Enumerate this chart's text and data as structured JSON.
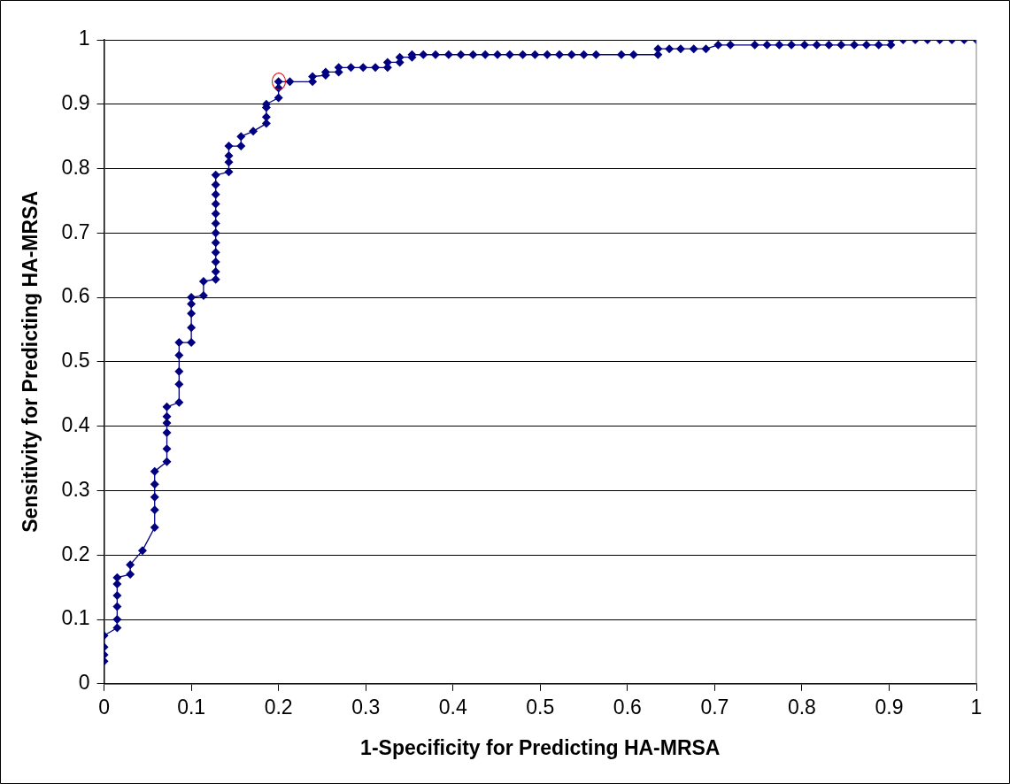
{
  "chart_data": {
    "type": "line",
    "xlabel": "1-Specificity for Predicting HA-MRSA",
    "ylabel": "Sensitivity for Predicting HA-MRSA",
    "xlim": [
      0,
      1
    ],
    "ylim": [
      0,
      1
    ],
    "xticks": [
      0,
      0.1,
      0.2,
      0.3,
      0.4,
      0.5,
      0.6,
      0.7,
      0.8,
      0.9,
      1
    ],
    "yticks": [
      0,
      0.1,
      0.2,
      0.3,
      0.4,
      0.5,
      0.6,
      0.7,
      0.8,
      0.9,
      1
    ],
    "grid": "y",
    "marker": "diamond",
    "line_style": "solid",
    "series": [
      {
        "color": "#000080",
        "x": [
          0,
          0,
          0,
          0,
          0.015,
          0.015,
          0.015,
          0.015,
          0.015,
          0.015,
          0.03,
          0.03,
          0.044,
          0.058,
          0.058,
          0.058,
          0.058,
          0.058,
          0.072,
          0.072,
          0.072,
          0.072,
          0.072,
          0.072,
          0.086,
          0.086,
          0.086,
          0.086,
          0.086,
          0.1,
          0.1,
          0.1,
          0.1,
          0.1,
          0.114,
          0.114,
          0.128,
          0.128,
          0.128,
          0.128,
          0.128,
          0.128,
          0.128,
          0.128,
          0.128,
          0.128,
          0.128,
          0.128,
          0.143,
          0.143,
          0.143,
          0.143,
          0.157,
          0.157,
          0.171,
          0.186,
          0.186,
          0.186,
          0.186,
          0.2,
          0.2,
          0.2,
          0.213,
          0.239,
          0.239,
          0.254,
          0.254,
          0.269,
          0.269,
          0.283,
          0.297,
          0.311,
          0.325,
          0.325,
          0.339,
          0.339,
          0.353,
          0.353,
          0.366,
          0.38,
          0.395,
          0.409,
          0.423,
          0.437,
          0.451,
          0.465,
          0.48,
          0.494,
          0.508,
          0.522,
          0.536,
          0.55,
          0.564,
          0.593,
          0.607,
          0.635,
          0.635,
          0.648,
          0.661,
          0.676,
          0.69,
          0.704,
          0.718,
          0.746,
          0.76,
          0.774,
          0.788,
          0.803,
          0.817,
          0.831,
          0.845,
          0.86,
          0.874,
          0.888,
          0.902,
          0.902,
          0.916,
          0.93,
          0.944,
          0.958,
          0.972,
          0.986,
          1
        ],
        "values": [
          0.035,
          0.045,
          0.057,
          0.075,
          0.087,
          0.1,
          0.12,
          0.137,
          0.155,
          0.165,
          0.17,
          0.185,
          0.207,
          0.243,
          0.27,
          0.29,
          0.31,
          0.33,
          0.345,
          0.365,
          0.39,
          0.405,
          0.415,
          0.43,
          0.437,
          0.465,
          0.485,
          0.51,
          0.53,
          0.53,
          0.553,
          0.575,
          0.59,
          0.6,
          0.603,
          0.625,
          0.628,
          0.64,
          0.655,
          0.67,
          0.685,
          0.7,
          0.715,
          0.73,
          0.745,
          0.76,
          0.775,
          0.79,
          0.795,
          0.81,
          0.82,
          0.835,
          0.835,
          0.85,
          0.858,
          0.87,
          0.88,
          0.895,
          0.9,
          0.91,
          0.925,
          0.935,
          0.935,
          0.935,
          0.943,
          0.945,
          0.95,
          0.95,
          0.957,
          0.957,
          0.957,
          0.957,
          0.957,
          0.965,
          0.965,
          0.973,
          0.973,
          0.977,
          0.977,
          0.977,
          0.977,
          0.977,
          0.977,
          0.977,
          0.977,
          0.977,
          0.977,
          0.977,
          0.977,
          0.977,
          0.977,
          0.977,
          0.977,
          0.977,
          0.977,
          0.977,
          0.986,
          0.986,
          0.986,
          0.986,
          0.986,
          0.992,
          0.992,
          0.992,
          0.992,
          0.992,
          0.992,
          0.992,
          0.992,
          0.992,
          0.992,
          0.992,
          0.992,
          0.992,
          0.992,
          1,
          1,
          1,
          1,
          1,
          1,
          1,
          1
        ]
      }
    ]
  }
}
